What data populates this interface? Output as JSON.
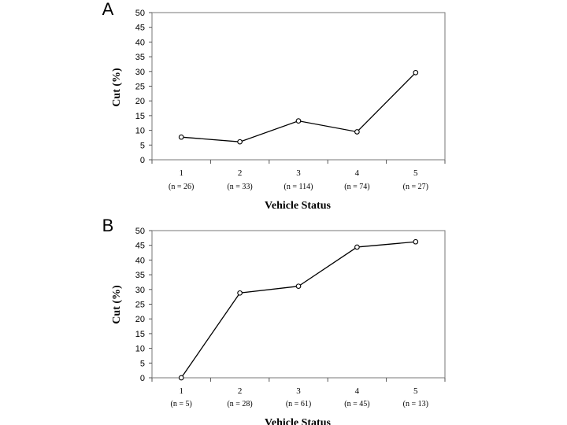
{
  "chart_data": [
    {
      "panel_label": "A",
      "type": "line",
      "categories": [
        "1",
        "2",
        "3",
        "4",
        "5"
      ],
      "n_labels": [
        "(n = 26)",
        "(n = 33)",
        "(n = 114)",
        "(n = 74)",
        "(n = 27)"
      ],
      "values": [
        7.7,
        6.1,
        13.2,
        9.5,
        29.6
      ],
      "ylabel": "Cut (%)",
      "xlabel": "Vehicle Status",
      "ylim": [
        0,
        50
      ],
      "yticks": [
        "0",
        "5",
        "10",
        "15",
        "20",
        "25",
        "30",
        "35",
        "40",
        "45",
        "50"
      ],
      "grid": false
    },
    {
      "panel_label": "B",
      "type": "line",
      "categories": [
        "1",
        "2",
        "3",
        "4",
        "5"
      ],
      "n_labels": [
        "(n = 5)",
        "(n = 28)",
        "(n = 61)",
        "(n = 45)",
        "(n = 13)"
      ],
      "values": [
        0,
        28.8,
        31.1,
        44.4,
        46.2
      ],
      "ylabel": "Cut (%)",
      "xlabel": "Vehicle Status",
      "ylim": [
        0,
        50
      ],
      "yticks": [
        "0",
        "5",
        "10",
        "15",
        "20",
        "25",
        "30",
        "35",
        "40",
        "45",
        "50"
      ],
      "grid": false
    }
  ]
}
